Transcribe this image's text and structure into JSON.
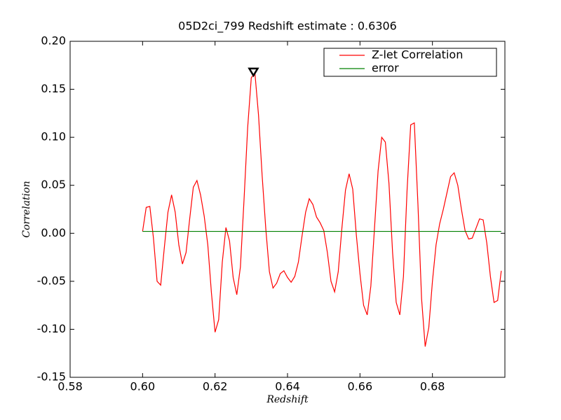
{
  "chart_data": {
    "type": "line",
    "title": "05D2ci_799 Redshift estimate : 0.6306",
    "x_label": "Redshift",
    "y_label": "Correlation",
    "xlim": [
      0.58,
      0.7
    ],
    "ylim": [
      -0.15,
      0.2
    ],
    "xticks": [
      0.58,
      {
        "value": 0.6,
        "label": "0.60"
      },
      0.62,
      0.64,
      0.66,
      0.68
    ],
    "yticks": [
      -0.15,
      {
        "value": -0.1,
        "label": "-0.10"
      },
      -0.05,
      {
        "value": 0,
        "label": "0.00"
      },
      0.05,
      {
        "value": 0.1,
        "label": "0.10"
      },
      0.15,
      {
        "value": 0.2,
        "label": "0.20"
      }
    ],
    "legend": "upper right",
    "series": [
      {
        "name": "Z-let Correlation",
        "color": "#ff0000",
        "x": [
          0.6,
          0.601,
          0.602,
          0.603,
          0.604,
          0.605,
          0.606,
          0.607,
          0.608,
          0.609,
          0.61,
          0.611,
          0.612,
          0.613,
          0.614,
          0.615,
          0.616,
          0.617,
          0.618,
          0.619,
          0.62,
          0.621,
          0.622,
          0.623,
          0.624,
          0.625,
          0.626,
          0.627,
          0.628,
          0.629,
          0.63,
          0.631,
          0.632,
          0.633,
          0.634,
          0.635,
          0.636,
          0.637,
          0.638,
          0.639,
          0.64,
          0.641,
          0.642,
          0.643,
          0.644,
          0.645,
          0.646,
          0.647,
          0.648,
          0.649,
          0.65,
          0.651,
          0.652,
          0.653,
          0.654,
          0.655,
          0.656,
          0.657,
          0.658,
          0.659,
          0.66,
          0.661,
          0.662,
          0.663,
          0.664,
          0.665,
          0.666,
          0.667,
          0.668,
          0.669,
          0.67,
          0.671,
          0.672,
          0.673,
          0.674,
          0.675,
          0.676,
          0.677,
          0.678,
          0.679,
          0.68,
          0.681,
          0.682,
          0.683,
          0.684,
          0.685,
          0.686,
          0.687,
          0.688,
          0.689,
          0.69,
          0.691,
          0.692,
          0.693,
          0.694,
          0.695,
          0.696,
          0.697,
          0.698,
          0.699
        ],
        "values": [
          0.002,
          0.027,
          0.028,
          -0.005,
          -0.05,
          -0.054,
          -0.015,
          0.022,
          0.04,
          0.022,
          -0.012,
          -0.032,
          -0.02,
          0.015,
          0.048,
          0.055,
          0.04,
          0.018,
          -0.012,
          -0.062,
          -0.103,
          -0.09,
          -0.03,
          0.006,
          -0.008,
          -0.046,
          -0.064,
          -0.035,
          0.035,
          0.11,
          0.162,
          0.167,
          0.123,
          0.06,
          0.005,
          -0.04,
          -0.057,
          -0.052,
          -0.042,
          -0.039,
          -0.046,
          -0.051,
          -0.045,
          -0.03,
          -0.003,
          0.022,
          0.036,
          0.03,
          0.017,
          0.011,
          0.003,
          -0.02,
          -0.05,
          -0.061,
          -0.04,
          0.005,
          0.045,
          0.062,
          0.046,
          -0.002,
          -0.042,
          -0.075,
          -0.085,
          -0.055,
          0.005,
          0.065,
          0.1,
          0.095,
          0.052,
          -0.02,
          -0.072,
          -0.085,
          -0.045,
          0.045,
          0.113,
          0.115,
          0.03,
          -0.068,
          -0.118,
          -0.098,
          -0.05,
          -0.012,
          0.01,
          0.025,
          0.042,
          0.059,
          0.063,
          0.05,
          0.025,
          0.003,
          -0.006,
          -0.005,
          0.005,
          0.015,
          0.014,
          -0.01,
          -0.045,
          -0.072,
          -0.07,
          -0.039
        ]
      },
      {
        "name": "error",
        "color": "#008000",
        "x": [
          0.6,
          0.699
        ],
        "values": [
          0.002,
          0.002
        ]
      }
    ],
    "marker": {
      "x": 0.6306,
      "y": 0.168
    }
  }
}
